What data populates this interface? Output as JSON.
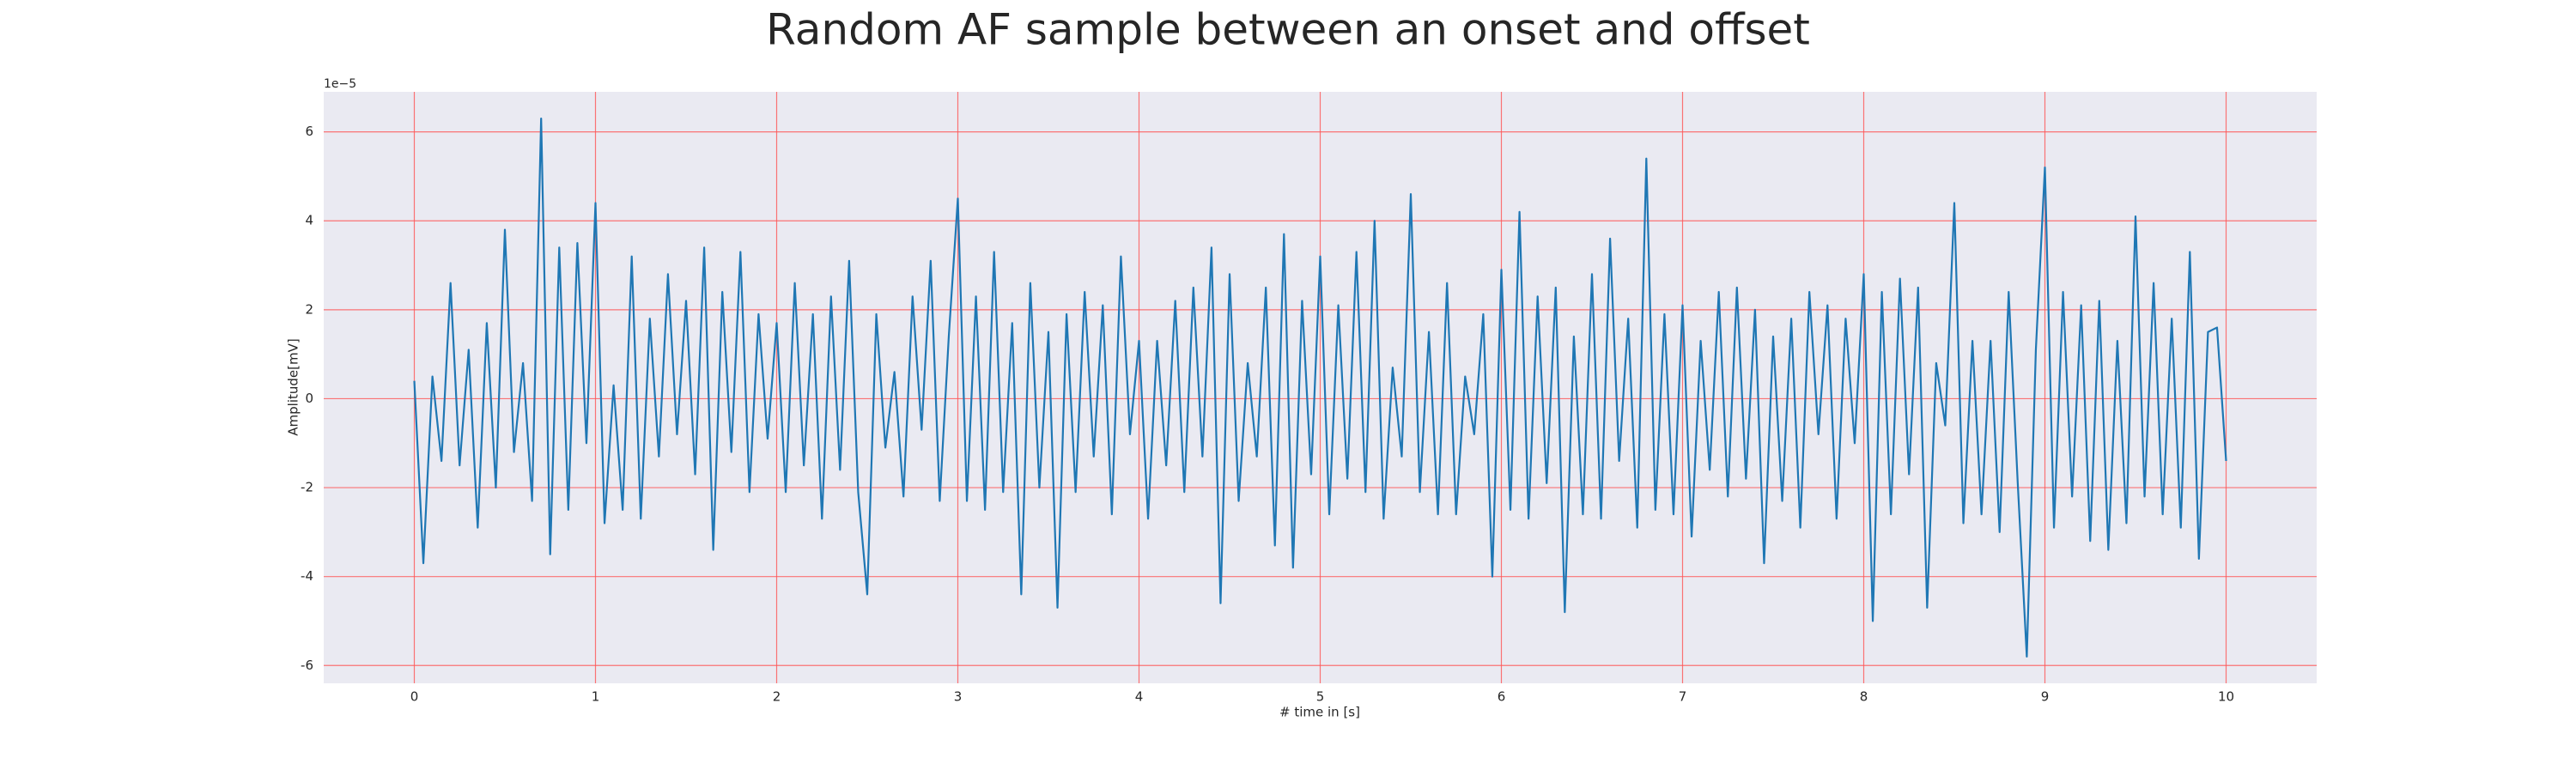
{
  "chart_data": {
    "type": "line",
    "title": "Random AF sample between an onset and offset",
    "xlabel": "# time in [s]",
    "ylabel": "Amplitude[mV]",
    "y_offset_label": "1e−5",
    "xlim": [
      -0.5,
      10.5
    ],
    "ylim": [
      -6.4,
      6.9
    ],
    "xticks": [
      0,
      1,
      2,
      3,
      4,
      5,
      6,
      7,
      8,
      9,
      10
    ],
    "yticks": [
      -6,
      -4,
      -2,
      0,
      2,
      4,
      6
    ],
    "grid": true,
    "grid_color": "#ff5555",
    "background": "#eaeaf2",
    "x": [
      0,
      0.05,
      0.1,
      0.15,
      0.2,
      0.25,
      0.3,
      0.35,
      0.4,
      0.45,
      0.5,
      0.55,
      0.6,
      0.65,
      0.7,
      0.75,
      0.8,
      0.85,
      0.9,
      0.95,
      1,
      1.05,
      1.1,
      1.15,
      1.2,
      1.25,
      1.3,
      1.35,
      1.4,
      1.45,
      1.5,
      1.55,
      1.6,
      1.65,
      1.7,
      1.75,
      1.8,
      1.85,
      1.9,
      1.95,
      2,
      2.05,
      2.1,
      2.15,
      2.2,
      2.25,
      2.3,
      2.35,
      2.4,
      2.45,
      2.5,
      2.55,
      2.6,
      2.65,
      2.7,
      2.75,
      2.8,
      2.85,
      2.9,
      2.95,
      3,
      3.05,
      3.1,
      3.15,
      3.2,
      3.25,
      3.3,
      3.35,
      3.4,
      3.45,
      3.5,
      3.55,
      3.6,
      3.65,
      3.7,
      3.75,
      3.8,
      3.85,
      3.9,
      3.95,
      4,
      4.05,
      4.1,
      4.15,
      4.2,
      4.25,
      4.3,
      4.35,
      4.4,
      4.45,
      4.5,
      4.55,
      4.6,
      4.65,
      4.7,
      4.75,
      4.8,
      4.85,
      4.9,
      4.95,
      5,
      5.05,
      5.1,
      5.15,
      5.2,
      5.25,
      5.3,
      5.35,
      5.4,
      5.45,
      5.5,
      5.55,
      5.6,
      5.65,
      5.7,
      5.75,
      5.8,
      5.85,
      5.9,
      5.95,
      6,
      6.05,
      6.1,
      6.15,
      6.2,
      6.25,
      6.3,
      6.35,
      6.4,
      6.45,
      6.5,
      6.55,
      6.6,
      6.65,
      6.7,
      6.75,
      6.8,
      6.85,
      6.9,
      6.95,
      7,
      7.05,
      7.1,
      7.15,
      7.2,
      7.25,
      7.3,
      7.35,
      7.4,
      7.45,
      7.5,
      7.55,
      7.6,
      7.65,
      7.7,
      7.75,
      7.8,
      7.85,
      7.9,
      7.95,
      8,
      8.05,
      8.1,
      8.15,
      8.2,
      8.25,
      8.3,
      8.35,
      8.4,
      8.45,
      8.5,
      8.55,
      8.6,
      8.65,
      8.7,
      8.75,
      8.8,
      8.85,
      8.9,
      8.95,
      9,
      9.05,
      9.1,
      9.15,
      9.2,
      9.25,
      9.3,
      9.35,
      9.4,
      9.45,
      9.5,
      9.55,
      9.6,
      9.65,
      9.7,
      9.75,
      9.8,
      9.85,
      9.9,
      9.95,
      10
    ],
    "series": [
      {
        "color": "#1f77b4",
        "values": [
          0.4,
          -3.7,
          0.5,
          -1.4,
          2.6,
          -1.5,
          1.1,
          -2.9,
          1.7,
          -2.0,
          3.8,
          -1.2,
          0.8,
          -2.3,
          6.3,
          -3.5,
          3.4,
          -2.5,
          3.5,
          -1.0,
          4.4,
          -2.8,
          0.3,
          -2.5,
          3.2,
          -2.7,
          1.8,
          -1.3,
          2.8,
          -0.8,
          2.2,
          -1.7,
          3.4,
          -3.4,
          2.4,
          -1.2,
          3.3,
          -2.1,
          1.9,
          -0.9,
          1.7,
          -2.1,
          2.6,
          -1.5,
          1.9,
          -2.7,
          2.3,
          -1.6,
          3.1,
          -2.1,
          -4.4,
          1.9,
          -1.1,
          0.6,
          -2.2,
          2.3,
          -0.7,
          3.1,
          -2.3,
          1.4,
          4.5,
          -2.3,
          2.3,
          -2.5,
          3.3,
          -2.1,
          1.7,
          -4.4,
          2.6,
          -2.0,
          1.5,
          -4.7,
          1.9,
          -2.1,
          2.4,
          -1.3,
          2.1,
          -2.6,
          3.2,
          -0.8,
          1.3,
          -2.7,
          1.3,
          -1.5,
          2.2,
          -2.1,
          2.5,
          -1.3,
          3.4,
          -4.6,
          2.8,
          -2.3,
          0.8,
          -1.3,
          2.5,
          -3.3,
          3.7,
          -3.8,
          2.2,
          -1.7,
          3.2,
          -2.6,
          2.1,
          -1.8,
          3.3,
          -2.1,
          4.0,
          -2.7,
          0.7,
          -1.3,
          4.6,
          -2.1,
          1.5,
          -2.6,
          2.6,
          -2.6,
          0.5,
          -0.8,
          1.9,
          -4.0,
          2.9,
          -2.5,
          4.2,
          -2.7,
          2.3,
          -1.9,
          2.5,
          -4.8,
          1.4,
          -2.6,
          2.8,
          -2.7,
          3.6,
          -1.4,
          1.8,
          -2.9,
          5.4,
          -2.5,
          1.9,
          -2.6,
          2.1,
          -3.1,
          1.3,
          -1.6,
          2.4,
          -2.2,
          2.5,
          -1.8,
          2.0,
          -3.7,
          1.4,
          -2.3,
          1.8,
          -2.9,
          2.4,
          -0.8,
          2.1,
          -2.7,
          1.8,
          -1.0,
          2.8,
          -5.0,
          2.4,
          -2.6,
          2.7,
          -1.7,
          2.5,
          -4.7,
          0.8,
          -0.6,
          4.4,
          -2.8,
          1.3,
          -2.6,
          1.3,
          -3.0,
          2.4,
          -1.9,
          -5.8,
          1.1,
          5.2,
          -2.9,
          2.4,
          -2.2,
          2.1,
          -3.2,
          2.2,
          -3.4,
          1.3,
          -2.8,
          4.1,
          -2.2,
          2.6,
          -2.6,
          1.8,
          -2.9,
          3.3,
          -3.6,
          1.5,
          1.6,
          -1.4
        ]
      }
    ]
  }
}
